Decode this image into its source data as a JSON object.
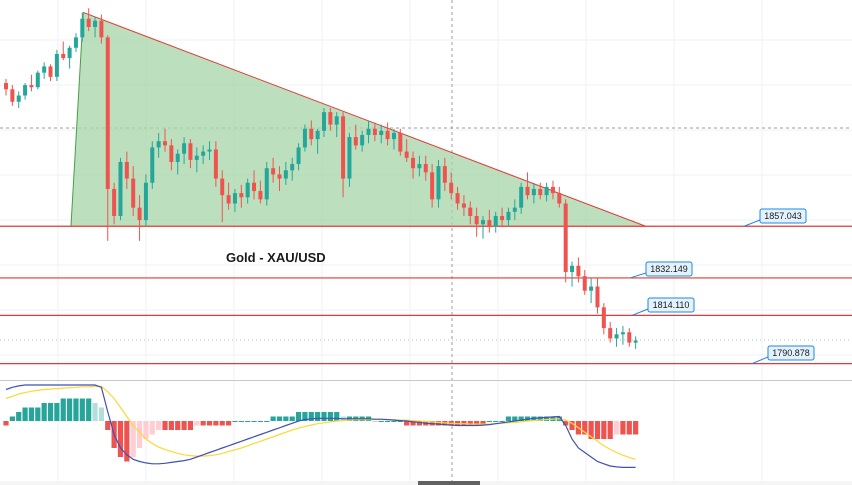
{
  "chart_data": {
    "type": "candlestick",
    "title": "Gold - XAU/USD",
    "colors": {
      "up": "#26a69a",
      "down": "#ef5350",
      "level_line": "#e53935",
      "triangle_fill": "#a5d6a7",
      "triangle_edge": "#e53935",
      "macd_line": "#3f51b5",
      "signal_line": "#fdd835",
      "hist_up_strong": "#26a69a",
      "hist_up_weak": "#b2dfdb",
      "hist_down_strong": "#ef5350",
      "hist_down_weak": "#ffcdd2",
      "label_bg": "#e3f2fd",
      "label_border": "#1e88e5"
    },
    "price_levels": [
      {
        "name": "level-1857",
        "label": "1857.043",
        "value": 1857.043
      },
      {
        "name": "level-1832",
        "label": "1832.149",
        "value": 1832.149
      },
      {
        "name": "level-1814",
        "label": "1814.110",
        "value": 1814.11
      },
      {
        "name": "level-1790",
        "label": "1790.878",
        "value": 1790.878
      }
    ],
    "y_range": [
      1783.0,
      1966.0
    ],
    "candles": [
      [
        1926,
        1928,
        1920,
        1923
      ],
      [
        1923,
        1925,
        1915,
        1917
      ],
      [
        1917,
        1922,
        1914,
        1920
      ],
      [
        1920,
        1926,
        1918,
        1925
      ],
      [
        1925,
        1930,
        1922,
        1924
      ],
      [
        1924,
        1932,
        1923,
        1931
      ],
      [
        1931,
        1936,
        1928,
        1934
      ],
      [
        1934,
        1935,
        1927,
        1929
      ],
      [
        1929,
        1942,
        1927,
        1940
      ],
      [
        1940,
        1946,
        1937,
        1938
      ],
      [
        1938,
        1944,
        1933,
        1943
      ],
      [
        1943,
        1950,
        1941,
        1948
      ],
      [
        1948,
        1960,
        1946,
        1957
      ],
      [
        1957,
        1962,
        1951,
        1953
      ],
      [
        1953,
        1958,
        1948,
        1956
      ],
      [
        1956,
        1959,
        1945,
        1948
      ],
      [
        1948,
        1949,
        1850,
        1875
      ],
      [
        1875,
        1878,
        1858,
        1862
      ],
      [
        1862,
        1890,
        1860,
        1888
      ],
      [
        1888,
        1893,
        1875,
        1880
      ],
      [
        1880,
        1886,
        1862,
        1866
      ],
      [
        1866,
        1872,
        1850,
        1860
      ],
      [
        1860,
        1882,
        1857,
        1878
      ],
      [
        1878,
        1898,
        1875,
        1895
      ],
      [
        1895,
        1902,
        1890,
        1898
      ],
      [
        1898,
        1904,
        1893,
        1896
      ],
      [
        1896,
        1899,
        1884,
        1888
      ],
      [
        1888,
        1894,
        1882,
        1892
      ],
      [
        1892,
        1900,
        1887,
        1897
      ],
      [
        1897,
        1899,
        1885,
        1889
      ],
      [
        1889,
        1895,
        1883,
        1891
      ],
      [
        1891,
        1896,
        1887,
        1893
      ],
      [
        1893,
        1898,
        1889,
        1894
      ],
      [
        1894,
        1898,
        1876,
        1880
      ],
      [
        1880,
        1884,
        1859,
        1872
      ],
      [
        1872,
        1878,
        1865,
        1868
      ],
      [
        1868,
        1875,
        1864,
        1873
      ],
      [
        1873,
        1877,
        1866,
        1871
      ],
      [
        1871,
        1880,
        1868,
        1878
      ],
      [
        1878,
        1884,
        1870,
        1874
      ],
      [
        1874,
        1879,
        1868,
        1870
      ],
      [
        1870,
        1888,
        1867,
        1885
      ],
      [
        1885,
        1890,
        1878,
        1882
      ],
      [
        1882,
        1886,
        1874,
        1880
      ],
      [
        1880,
        1888,
        1877,
        1884
      ],
      [
        1884,
        1890,
        1879,
        1887
      ],
      [
        1887,
        1897,
        1884,
        1895
      ],
      [
        1895,
        1906,
        1893,
        1904
      ],
      [
        1904,
        1908,
        1896,
        1899
      ],
      [
        1899,
        1904,
        1892,
        1903
      ],
      [
        1903,
        1914,
        1900,
        1912
      ],
      [
        1912,
        1914,
        1903,
        1906
      ],
      [
        1906,
        1912,
        1900,
        1910
      ],
      [
        1910,
        1912,
        1871,
        1880
      ],
      [
        1880,
        1902,
        1876,
        1900
      ],
      [
        1900,
        1906,
        1894,
        1896
      ],
      [
        1896,
        1903,
        1893,
        1901
      ],
      [
        1901,
        1908,
        1897,
        1904
      ],
      [
        1904,
        1907,
        1898,
        1901
      ],
      [
        1901,
        1906,
        1897,
        1903
      ],
      [
        1903,
        1907,
        1896,
        1899
      ],
      [
        1899,
        1904,
        1894,
        1902
      ],
      [
        1902,
        1904,
        1891,
        1893
      ],
      [
        1893,
        1899,
        1888,
        1890
      ],
      [
        1890,
        1893,
        1880,
        1885
      ],
      [
        1885,
        1891,
        1881,
        1887
      ],
      [
        1887,
        1891,
        1879,
        1883
      ],
      [
        1883,
        1887,
        1866,
        1870
      ],
      [
        1870,
        1889,
        1866,
        1886
      ],
      [
        1886,
        1890,
        1874,
        1878
      ],
      [
        1878,
        1883,
        1870,
        1873
      ],
      [
        1873,
        1876,
        1865,
        1868
      ],
      [
        1868,
        1872,
        1862,
        1866
      ],
      [
        1866,
        1869,
        1858,
        1862
      ],
      [
        1862,
        1866,
        1852,
        1858
      ],
      [
        1858,
        1862,
        1851,
        1860
      ],
      [
        1860,
        1865,
        1854,
        1857
      ],
      [
        1857,
        1864,
        1854,
        1862
      ],
      [
        1862,
        1866,
        1857,
        1860
      ],
      [
        1860,
        1866,
        1857,
        1864
      ],
      [
        1864,
        1870,
        1860,
        1866
      ],
      [
        1866,
        1878,
        1863,
        1876
      ],
      [
        1876,
        1883,
        1870,
        1872
      ],
      [
        1872,
        1878,
        1868,
        1875
      ],
      [
        1875,
        1878,
        1870,
        1872
      ],
      [
        1872,
        1878,
        1869,
        1876
      ],
      [
        1876,
        1879,
        1870,
        1873
      ],
      [
        1873,
        1876,
        1866,
        1868
      ],
      [
        1868,
        1870,
        1830,
        1835
      ],
      [
        1835,
        1840,
        1828,
        1838
      ],
      [
        1838,
        1842,
        1830,
        1833
      ],
      [
        1833,
        1836,
        1824,
        1826
      ],
      [
        1826,
        1832,
        1820,
        1828
      ],
      [
        1828,
        1832,
        1815,
        1818
      ],
      [
        1818,
        1820,
        1805,
        1808
      ],
      [
        1808,
        1811,
        1801,
        1803
      ],
      [
        1803,
        1808,
        1799,
        1805
      ],
      [
        1805,
        1809,
        1800,
        1806
      ],
      [
        1806,
        1808,
        1799,
        1801
      ],
      [
        1801,
        1804,
        1798,
        1802
      ]
    ],
    "macd": {
      "zero_value": 0,
      "range": [
        -12,
        8
      ],
      "histogram": [
        -1,
        1,
        2,
        3,
        3,
        3,
        4,
        4,
        4,
        5,
        5,
        5,
        5,
        5,
        4,
        3,
        -2,
        -6,
        -8,
        -9,
        -8,
        -6,
        -4,
        -3,
        -2,
        -2,
        -2,
        -2,
        -2,
        -2,
        -1,
        -1,
        -1,
        -1,
        -1,
        -1,
        0,
        0,
        0,
        0,
        0,
        0,
        1,
        1,
        1,
        1,
        2,
        2,
        2,
        2,
        2,
        2,
        2,
        1,
        1,
        1,
        1,
        1,
        0,
        0,
        0,
        0,
        0,
        -1,
        -1,
        -1,
        -1,
        -1,
        -1,
        -1,
        -1,
        -1,
        -1,
        -1,
        -1,
        -1,
        0,
        0,
        0,
        1,
        1,
        1,
        1,
        1,
        1,
        1,
        1,
        1,
        -1,
        -2,
        -3,
        -3,
        -4,
        -4,
        -4,
        -4,
        -3,
        -3,
        -3,
        -3
      ],
      "macd_line": [
        7,
        7.5,
        7.8,
        8,
        8,
        8,
        8,
        8,
        8,
        8,
        8,
        8,
        8,
        8,
        8,
        7.5,
        2,
        -3,
        -6,
        -7.5,
        -8.5,
        -9,
        -9.3,
        -9.5,
        -9.5,
        -9.4,
        -9.2,
        -9,
        -8.8,
        -8.5,
        -8,
        -7.5,
        -7,
        -6.5,
        -6,
        -5.5,
        -5,
        -4.5,
        -4,
        -3.5,
        -3,
        -2.5,
        -2,
        -1.5,
        -1,
        -0.5,
        0,
        0.3,
        0.5,
        0.6,
        0.6,
        0.6,
        0.6,
        0.5,
        0.5,
        0.5,
        0.5,
        0.5,
        0.4,
        0.4,
        0.3,
        0.2,
        0.1,
        0,
        -0.2,
        -0.3,
        -0.5,
        -0.6,
        -0.7,
        -0.8,
        -0.9,
        -1,
        -1,
        -1,
        -1,
        -0.9,
        -0.8,
        -0.6,
        -0.4,
        -0.2,
        0,
        0.2,
        0.4,
        0.6,
        0.7,
        0.8,
        0.9,
        1,
        -1,
        -4,
        -6,
        -7,
        -8,
        -9,
        -9.5,
        -10,
        -10.2,
        -10.3,
        -10.3,
        -10.3
      ],
      "signal_line": [
        5,
        5.5,
        6,
        6.3,
        6.6,
        6.8,
        7,
        7.1,
        7.2,
        7.3,
        7.4,
        7.5,
        7.6,
        7.6,
        7.7,
        7.7,
        6.5,
        5,
        3,
        1,
        -1,
        -2.5,
        -4,
        -5,
        -5.8,
        -6.3,
        -6.8,
        -7.2,
        -7.5,
        -7.7,
        -7.8,
        -7.8,
        -7.7,
        -7.5,
        -7.2,
        -6.8,
        -6.4,
        -6,
        -5.5,
        -5,
        -4.5,
        -4,
        -3.5,
        -3,
        -2.5,
        -2,
        -1.6,
        -1.2,
        -0.9,
        -0.6,
        -0.4,
        -0.2,
        0,
        0.1,
        0.2,
        0.3,
        0.3,
        0.3,
        0.3,
        0.3,
        0.3,
        0.3,
        0.2,
        0.2,
        0.1,
        0,
        -0.1,
        -0.2,
        -0.3,
        -0.4,
        -0.5,
        -0.6,
        -0.6,
        -0.7,
        -0.7,
        -0.7,
        -0.7,
        -0.6,
        -0.5,
        -0.4,
        -0.3,
        -0.2,
        0,
        0.1,
        0.2,
        0.3,
        0.4,
        0.5,
        0.2,
        -0.5,
        -1.5,
        -2.5,
        -3.5,
        -4.5,
        -5.5,
        -6.3,
        -7,
        -7.6,
        -8.1,
        -8.5
      ]
    },
    "triangle": {
      "apex_index": 12,
      "apex_value": 1960,
      "base_start_index": 11,
      "base_end_index": 99,
      "base_value": 1857.043
    }
  }
}
